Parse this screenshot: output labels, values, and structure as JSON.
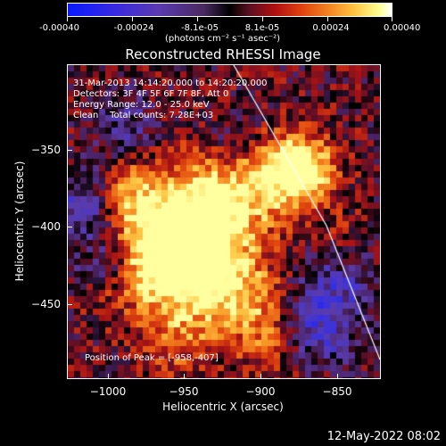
{
  "colorbar": {
    "ticks": [
      "-0.00040",
      "-0.00024",
      "-8.1e-05",
      "8.1e-05",
      "0.00024",
      "0.00040"
    ],
    "units_label": "(photons cm⁻² s⁻¹ asec⁻²)"
  },
  "title": "Reconstructed RHESSI Image",
  "info": {
    "time": "31-Mar-2013 14:14:20.000 to 14:20:20.000",
    "detectors": "Detectors: 3F 4F 5F 6F 7F 8F, Att 0",
    "energy": "Energy Range: 12.0 - 25.0 keV",
    "clean": "Clean    Total counts: 7.28E+03"
  },
  "peak": "Position of Peak = [-958,-407]",
  "axes": {
    "xlabel": "Heliocentric X (arcsec)",
    "ylabel": "Heliocentric Y (arcsec)",
    "xticks": [
      "−1000",
      "−950",
      "−900",
      "−850"
    ],
    "yticks": [
      "−350",
      "−400",
      "−450"
    ]
  },
  "footer": "12-May-2022 08:02"
}
